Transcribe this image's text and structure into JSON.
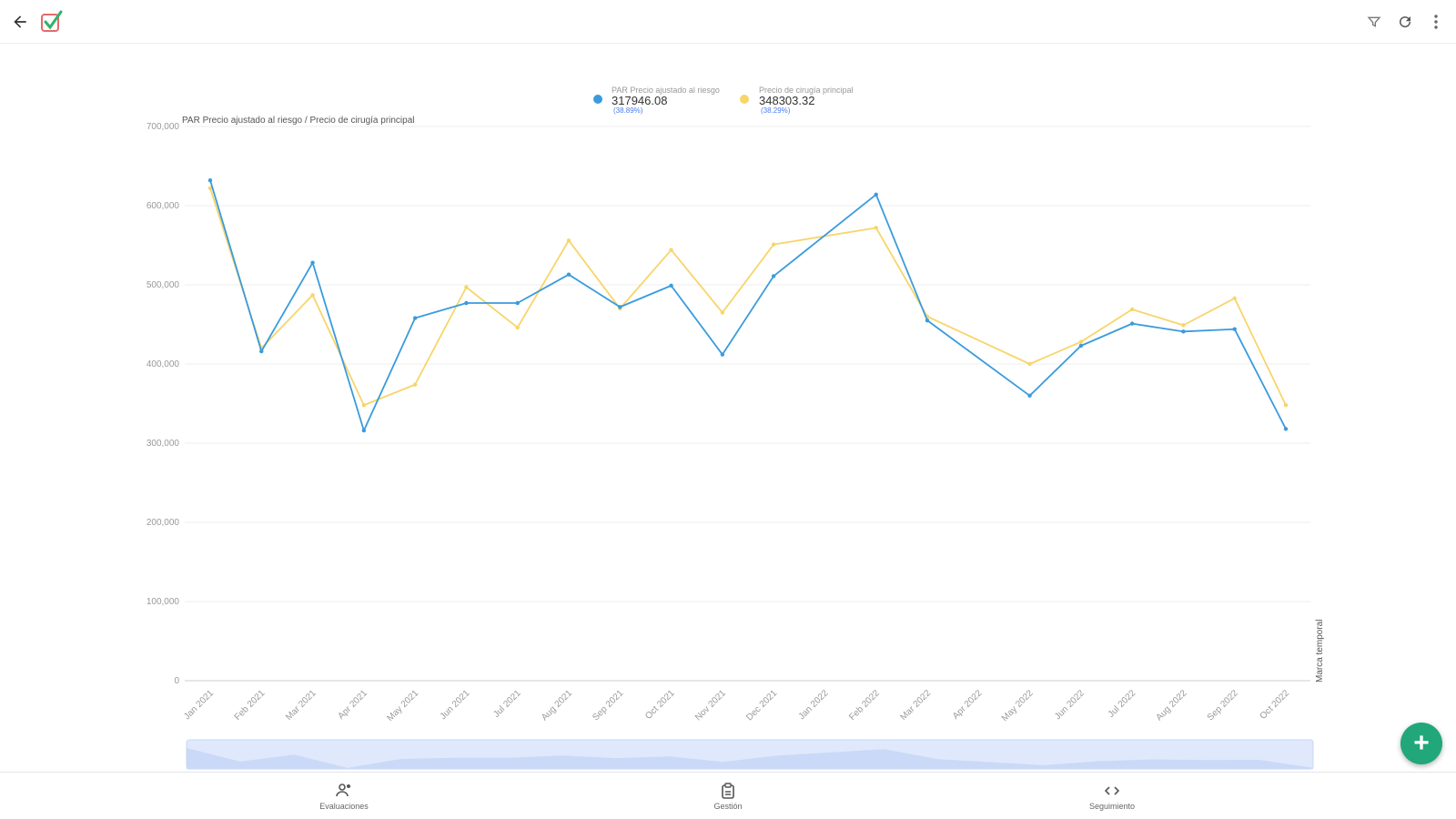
{
  "toolbar": {
    "back_icon": "arrow-left-icon",
    "logo_icon": "checkmark-logo-icon",
    "filter_icon": "filter-icon",
    "refresh_icon": "refresh-icon",
    "more_icon": "more-vert-icon"
  },
  "chart_data": {
    "type": "line",
    "subtitle": "PAR Precio ajustado al riesgo / Precio de cirugía principal",
    "ylim": [
      0,
      700000
    ],
    "yticks": [
      "0",
      "100,000",
      "200,000",
      "300,000",
      "400,000",
      "500,000",
      "600,000",
      "700,000"
    ],
    "right_axis_label": "Marca temporal",
    "grid": true,
    "legend_position": "top-center",
    "categories": [
      "Jan 2021",
      "Feb 2021",
      "Mar 2021",
      "Apr 2021",
      "May 2021",
      "Jun 2021",
      "Jul 2021",
      "Aug 2021",
      "Sep 2021",
      "Oct 2021",
      "Nov 2021",
      "Dec 2021",
      "Jan 2022",
      "Feb 2022",
      "Mar 2022",
      "Apr 2022",
      "May 2022",
      "Jun 2022",
      "Jul 2022",
      "Aug 2022",
      "Sep 2022",
      "Oct 2022"
    ],
    "series": [
      {
        "name": "PAR Precio ajustado al riesgo",
        "legend_value": "317946.08",
        "legend_pct": "(38.89%)",
        "color": "#3a9bdc",
        "values": [
          632000,
          416000,
          528000,
          316000,
          458000,
          477000,
          477000,
          513000,
          472000,
          499000,
          412000,
          511000,
          null,
          614000,
          455000,
          null,
          360000,
          423000,
          451000,
          441000,
          444000,
          318000
        ]
      },
      {
        "name": "Precio de cirugía principal",
        "legend_value": "348303.32",
        "legend_pct": "(38.29%)",
        "color": "#f7d56a",
        "values": [
          622000,
          420000,
          487000,
          348000,
          374000,
          497000,
          446000,
          556000,
          470000,
          544000,
          465000,
          551000,
          null,
          572000,
          460000,
          null,
          400000,
          428000,
          469000,
          449000,
          483000,
          348000
        ]
      }
    ]
  },
  "fab": {
    "label": "+"
  },
  "bottom_nav": {
    "items": [
      {
        "label": "Evaluaciones",
        "icon": "people-icon"
      },
      {
        "label": "Gestión",
        "icon": "clipboard-icon"
      },
      {
        "label": "Seguimiento",
        "icon": "code-icon"
      }
    ]
  }
}
